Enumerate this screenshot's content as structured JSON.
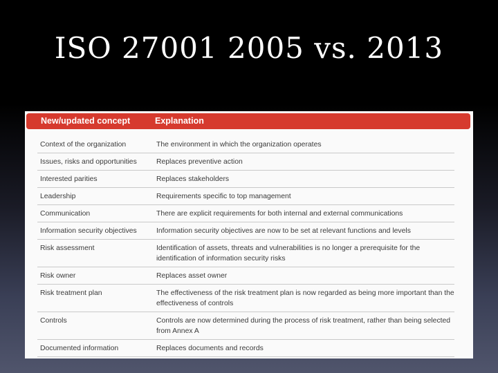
{
  "slide": {
    "title": "ISO 27001 2005 vs. 2013"
  },
  "table": {
    "headers": {
      "concept": "New/updated concept",
      "explanation": "Explanation"
    },
    "rows": [
      {
        "concept": "Context of the organization",
        "explanation": "The environment in which the organization operates"
      },
      {
        "concept": "Issues, risks and opportunities",
        "explanation": "Replaces preventive action"
      },
      {
        "concept": "Interested parities",
        "explanation": "Replaces stakeholders"
      },
      {
        "concept": "Leadership",
        "explanation": "Requirements specific to top management"
      },
      {
        "concept": "Communication",
        "explanation": "There are explicit requirements for both internal and external communications"
      },
      {
        "concept": "Information security objectives",
        "explanation": "Information security objectives are now to be set at relevant functions and levels"
      },
      {
        "concept": "Risk assessment",
        "explanation": "Identification of assets, threats and vulnerabilities is no longer a prerequisite for the identification of information security risks"
      },
      {
        "concept": "Risk owner",
        "explanation": "Replaces asset owner"
      },
      {
        "concept": "Risk treatment plan",
        "explanation": "The effectiveness of the risk treatment plan is now regarded as being more important than the effectiveness of controls"
      },
      {
        "concept": "Controls",
        "explanation": "Controls are now determined during the process of risk treatment, rather than being selected from Annex A"
      },
      {
        "concept": "Documented information",
        "explanation": "Replaces documents and records"
      }
    ]
  },
  "colors": {
    "header_bar": "#d63a2e",
    "title_text": "#ffffff",
    "body_text": "#3a3a3a"
  }
}
